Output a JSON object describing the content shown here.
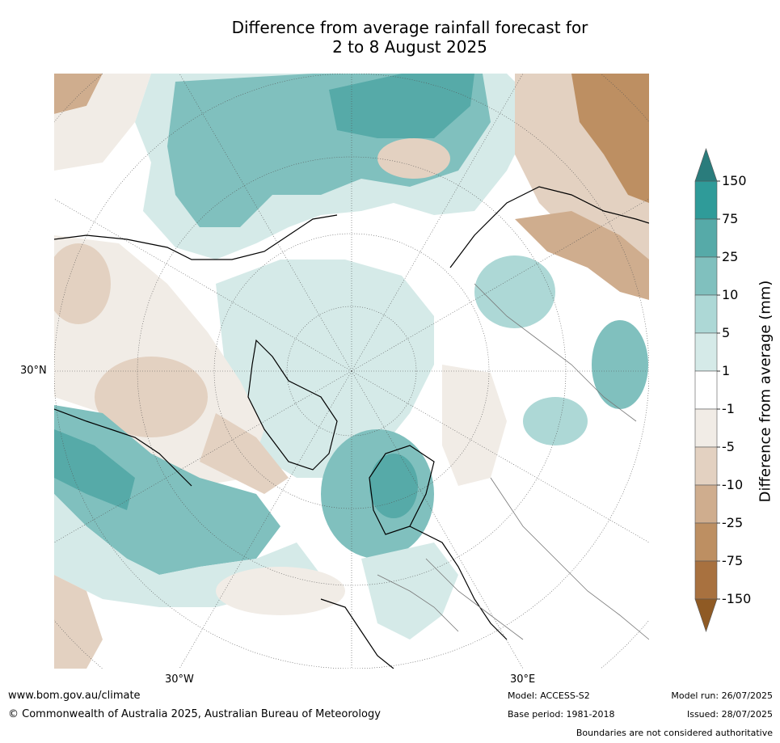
{
  "title": {
    "line1": "Difference from average rainfall forecast for",
    "line2": "2 to 8 August 2025"
  },
  "map": {
    "projection": "north-polar-stereographic",
    "lat_label": "30°N",
    "lon_labels": [
      "30°W",
      "30°E"
    ]
  },
  "colorbar": {
    "title": "Difference from average (mm)",
    "tick_labels": [
      "150",
      "75",
      "25",
      "10",
      "5",
      "1",
      "-1",
      "-5",
      "-10",
      "-25",
      "-75",
      "-150"
    ],
    "bins": [
      {
        "range": "> 150",
        "color": "#2a7c7c"
      },
      {
        "range": "75 to 150",
        "color": "#2f9b99"
      },
      {
        "range": "25 to 75",
        "color": "#56aaa8"
      },
      {
        "range": "10 to 25",
        "color": "#80c0be"
      },
      {
        "range": "5 to 10",
        "color": "#add8d6"
      },
      {
        "range": "1 to 5",
        "color": "#d5eae8"
      },
      {
        "range": "-1 to 1",
        "color": "#ffffff"
      },
      {
        "range": "-5 to -1",
        "color": "#f1ece6"
      },
      {
        "range": "-10 to -5",
        "color": "#e3d1c1"
      },
      {
        "range": "-25 to -10",
        "color": "#cfad8e"
      },
      {
        "range": "-75 to -25",
        "color": "#bd8f62"
      },
      {
        "range": "-150 to -75",
        "color": "#a8713f"
      },
      {
        "range": "< -150",
        "color": "#8f5a24"
      }
    ]
  },
  "footer": {
    "url": "www.bom.gov.au/climate",
    "copyright": "© Commonwealth of Australia 2025, Australian Bureau of Meteorology",
    "model": "Model: ACCESS-S2",
    "base_period": "Base period: 1981-2018",
    "model_run": "Model run: 26/07/2025",
    "issued": "Issued: 28/07/2025",
    "disclaimer": "Boundaries are not considered authoritative"
  }
}
